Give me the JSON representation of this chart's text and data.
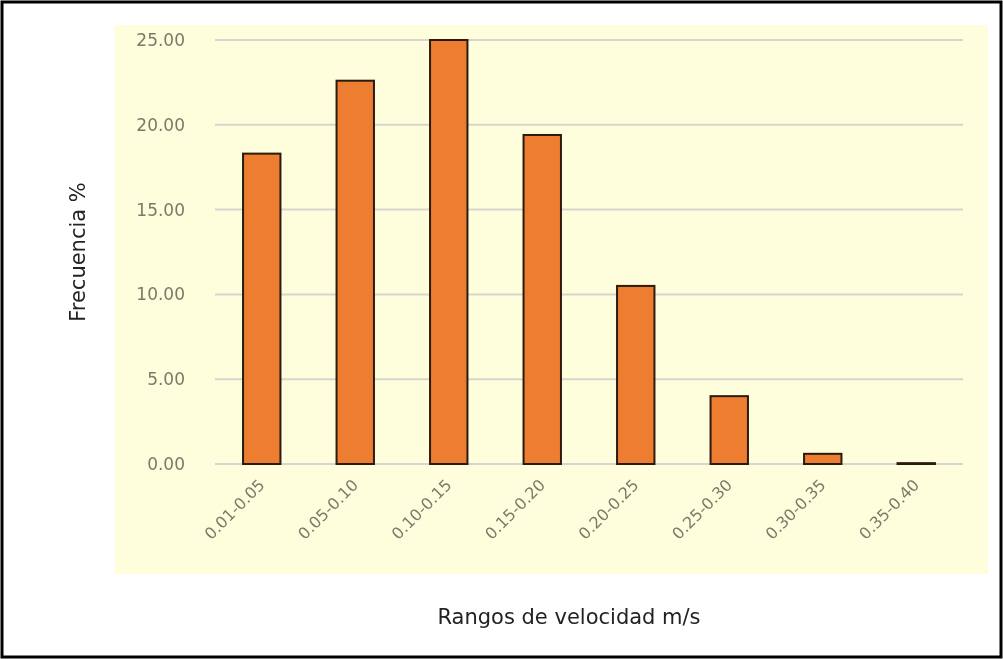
{
  "chart_data": {
    "type": "bar",
    "xlabel": "Rangos de velocidad m/s",
    "ylabel": "Frecuencia %",
    "categories": [
      "0.01-0.05",
      "0.05-0.10",
      "0.10-0.15",
      "0.15-0.20",
      "0.20-0.25",
      "0.25-0.30",
      "0.30-0.35",
      "0.35-0.40"
    ],
    "values": [
      18.3,
      22.6,
      25,
      19.4,
      10.5,
      4.0,
      0.6,
      0.05
    ],
    "color": "#ed7d31",
    "ylim": [
      0,
      25
    ],
    "yticks": [
      {
        "value": 0,
        "label": "0.00"
      },
      {
        "value": 5,
        "label": "5.00"
      },
      {
        "value": 10,
        "label": "10.00"
      },
      {
        "value": 15,
        "label": "15.00"
      },
      {
        "value": 20,
        "label": "20.00"
      },
      {
        "value": 25,
        "label": "25.00"
      }
    ],
    "grid": "y"
  }
}
